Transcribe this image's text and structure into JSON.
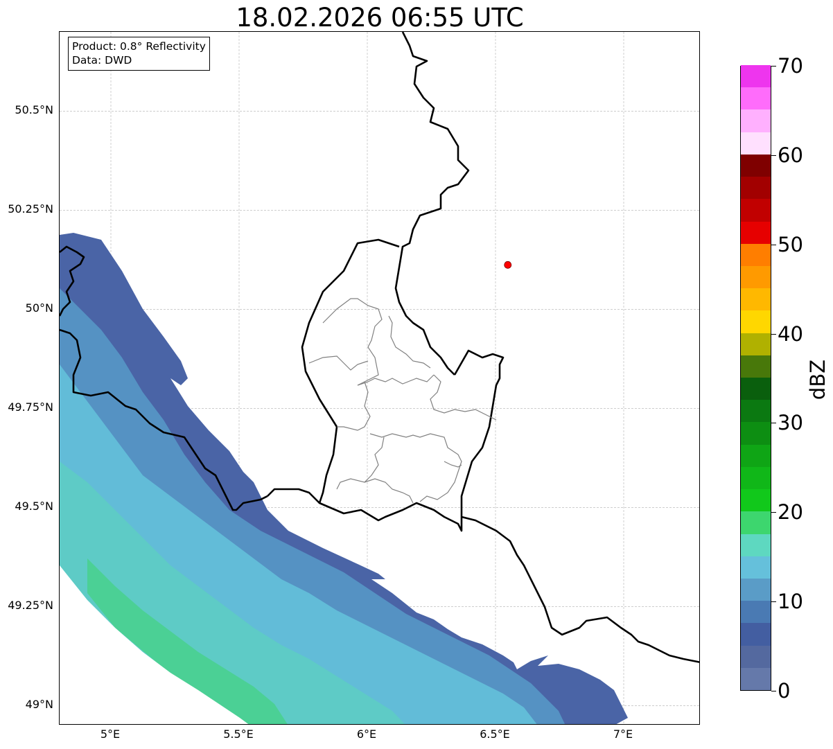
{
  "title": "18.02.2026 06:55 UTC",
  "info": {
    "product": "Product: 0.8° Reflectivity",
    "data": "Data: DWD"
  },
  "map": {
    "lat_range": [
      48.95,
      50.7
    ],
    "lon_range": [
      4.8,
      7.3
    ],
    "lat_ticks": [
      {
        "value": 49.0,
        "label": "49°N"
      },
      {
        "value": 49.25,
        "label": "49.25°N"
      },
      {
        "value": 49.5,
        "label": "49.5°N"
      },
      {
        "value": 49.75,
        "label": "49.75°N"
      },
      {
        "value": 50.0,
        "label": "50°N"
      },
      {
        "value": 50.25,
        "label": "50.25°N"
      },
      {
        "value": 50.5,
        "label": "50.5°N"
      }
    ],
    "lon_ticks": [
      {
        "value": 5.0,
        "label": "5°E"
      },
      {
        "value": 5.5,
        "label": "5.5°E"
      },
      {
        "value": 6.0,
        "label": "6°E"
      },
      {
        "value": 6.5,
        "label": "6.5°E"
      },
      {
        "value": 7.0,
        "label": "7°E"
      }
    ],
    "gridlines": true,
    "marker": {
      "lon": 6.548,
      "lat": 50.112,
      "color": "#ff0000"
    }
  },
  "colorbar": {
    "label": "dBZ",
    "min": 0,
    "max": 70,
    "ticks": [
      {
        "value": 0,
        "label": "0"
      },
      {
        "value": 10,
        "label": "10"
      },
      {
        "value": 20,
        "label": "20"
      },
      {
        "value": 30,
        "label": "30"
      },
      {
        "value": 40,
        "label": "40"
      },
      {
        "value": 50,
        "label": "50"
      },
      {
        "value": 60,
        "label": "60"
      },
      {
        "value": 70,
        "label": "70"
      }
    ],
    "colors": [
      "#6579aa",
      "#54699f",
      "#435ea1",
      "#4a7ab3",
      "#5a9cc7",
      "#65c0db",
      "#5ed8c0",
      "#3dd66e",
      "#11c81b",
      "#10b718",
      "#0fa515",
      "#0d8e12",
      "#0b7911",
      "#0a5f0d",
      "#48780a",
      "#b0b100",
      "#ffd700",
      "#ffb800",
      "#ff9a00",
      "#ff7e00",
      "#e60000",
      "#c10000",
      "#a20000",
      "#7f0000",
      "#ffe0fe",
      "#ffb0fe",
      "#ff6cfb",
      "#ee35ee"
    ]
  }
}
